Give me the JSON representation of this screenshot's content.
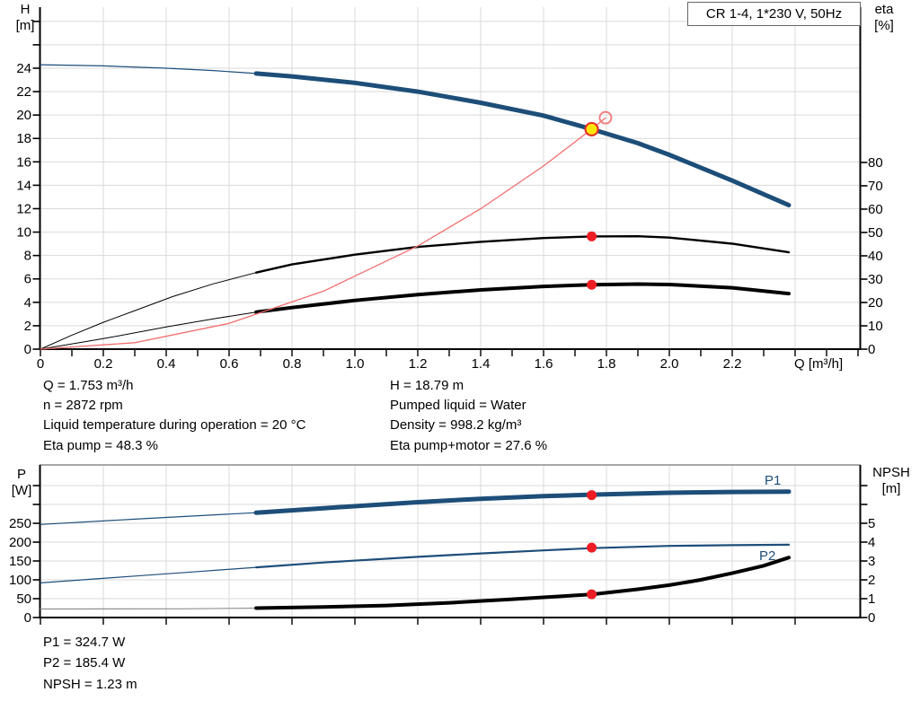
{
  "title_box": "CR 1-4, 1*230 V, 50Hz",
  "colors": {
    "curve_blue": "#1d4e79",
    "curve_black": "#000000",
    "system_red": "#f26d6d",
    "dot_red": "#ee1c23",
    "duty_yellow": "#ffe60a",
    "duty_ring_red": "#e73128",
    "grid": "#d9d9d9",
    "axis": "#000000",
    "npsh_thin_gray": "#909090"
  },
  "info_block": {
    "left": [
      "Q = 1.753 m³/h",
      "n = 2872 rpm",
      "Liquid temperature during operation = 20 °C",
      "Eta pump = 48.3 %"
    ],
    "right": [
      "H = 18.79 m",
      "Pumped liquid = Water",
      "Density = 998.2 kg/m³",
      "Eta pump+motor = 27.6 %"
    ]
  },
  "results_block": [
    "P1 = 324.7 W",
    "P2 = 185.4 W",
    "NPSH = 1.23 m"
  ],
  "chart_data": [
    {
      "type": "line",
      "title": "CR 1-4, 1*230 V, 50Hz",
      "xlabel": "Q [m³/h]",
      "ylabel_left_lines": [
        "H",
        "[m]"
      ],
      "ylabel_right_lines": [
        "eta",
        "[%]"
      ],
      "xlim": [
        0,
        2.61
      ],
      "ylim_left": [
        0,
        29
      ],
      "ylim_right": [
        0,
        145.8
      ],
      "grid": true,
      "x_tick_labels": [
        "0",
        "0.2",
        "0.4",
        "0.6",
        "0.8",
        "1.0",
        "1.2",
        "1.4",
        "1.6",
        "1.8",
        "2.0",
        "2.2"
      ],
      "x_ticks_unlabeled_grid": [
        2.4
      ],
      "y_left_tick_labels": [
        "0",
        "2",
        "4",
        "6",
        "8",
        "10",
        "12",
        "14",
        "16",
        "18",
        "20",
        "22",
        "24"
      ],
      "y_left_ticks_unlabeled": [
        26,
        28
      ],
      "y_right_tick_labels": [
        "0",
        "10",
        "20",
        "30",
        "40",
        "50",
        "60",
        "70",
        "80"
      ],
      "y_right_ticks_unlabeled": [],
      "series": [
        {
          "id": "qh-curve",
          "name": "H (pump curve)",
          "axis": "left",
          "color": "#1d4e79",
          "thin_width": 1.2,
          "thick_width": 5,
          "thin_points": [
            [
              0,
              24.3
            ],
            [
              0.2,
              24.2
            ],
            [
              0.4,
              24.0
            ],
            [
              0.55,
              23.8
            ],
            [
              0.686,
              23.55
            ]
          ],
          "thick_points": [
            [
              0.686,
              23.55
            ],
            [
              0.8,
              23.3
            ],
            [
              1.0,
              22.75
            ],
            [
              1.2,
              22.0
            ],
            [
              1.4,
              21.05
            ],
            [
              1.6,
              19.95
            ],
            [
              1.753,
              18.79
            ],
            [
              1.9,
              17.6
            ],
            [
              2.0,
              16.6
            ],
            [
              2.2,
              14.4
            ],
            [
              2.38,
              12.3
            ]
          ]
        },
        {
          "id": "eta-pump-curve",
          "name": "Eta pump",
          "axis": "right",
          "color": "#000000",
          "thin_width": 1,
          "thick_width": 2.4,
          "thin_points": [
            [
              0,
              0
            ],
            [
              0.1,
              6
            ],
            [
              0.2,
              11.5
            ],
            [
              0.3,
              16.5
            ],
            [
              0.42,
              22.5
            ],
            [
              0.55,
              28
            ],
            [
              0.686,
              32.8
            ]
          ],
          "thick_points": [
            [
              0.686,
              32.8
            ],
            [
              0.8,
              36.3
            ],
            [
              1.0,
              40.5
            ],
            [
              1.2,
              43.8
            ],
            [
              1.4,
              46.0
            ],
            [
              1.6,
              47.6
            ],
            [
              1.753,
              48.3
            ],
            [
              1.9,
              48.4
            ],
            [
              2.0,
              47.8
            ],
            [
              2.2,
              45.2
            ],
            [
              2.38,
              41.5
            ]
          ]
        },
        {
          "id": "eta-pump-motor-curve",
          "name": "Eta pump+motor",
          "axis": "right",
          "color": "#000000",
          "thin_width": 1,
          "thick_width": 4,
          "thin_points": [
            [
              0,
              0
            ],
            [
              0.2,
              4.5
            ],
            [
              0.4,
              9.5
            ],
            [
              0.55,
              13
            ],
            [
              0.686,
              15.9
            ]
          ],
          "thick_points": [
            [
              0.686,
              15.9
            ],
            [
              0.8,
              17.8
            ],
            [
              1.0,
              20.9
            ],
            [
              1.2,
              23.4
            ],
            [
              1.4,
              25.4
            ],
            [
              1.6,
              26.9
            ],
            [
              1.753,
              27.6
            ],
            [
              1.9,
              27.9
            ],
            [
              2.0,
              27.7
            ],
            [
              2.2,
              26.3
            ],
            [
              2.38,
              23.8
            ]
          ]
        },
        {
          "id": "system-curve",
          "name": "Duty line",
          "axis": "left",
          "color": "#f26d6d",
          "thin_width": 1.3,
          "thick_width": 1.3,
          "thin_points": [
            [
              0,
              0
            ],
            [
              0.3,
              0.55
            ],
            [
              0.6,
              2.2
            ],
            [
              0.9,
              4.95
            ],
            [
              1.2,
              8.81
            ],
            [
              1.4,
              11.99
            ],
            [
              1.6,
              15.65
            ],
            [
              1.753,
              18.79
            ],
            [
              1.797,
              19.75
            ]
          ],
          "thick_points": []
        }
      ],
      "markers": [
        {
          "id": "rated-duty-point",
          "shape": "open-circle",
          "axis": "left",
          "q": 1.797,
          "value": 19.77,
          "r": 6.5,
          "fill": "none",
          "stroke": "#f08080",
          "stroke_width": 2
        },
        {
          "id": "operating-point",
          "shape": "dot",
          "axis": "left",
          "q": 1.753,
          "value": 18.79,
          "r": 7,
          "fill": "#ffe60a",
          "stroke": "#e73128",
          "stroke_width": 2.2
        },
        {
          "id": "eta-pump-point",
          "shape": "dot",
          "axis": "right",
          "q": 1.753,
          "value": 48.3,
          "r": 5.5,
          "fill": "#ee1c23",
          "stroke": "none",
          "stroke_width": 0
        },
        {
          "id": "eta-pump-motor-point",
          "shape": "dot",
          "axis": "right",
          "q": 1.753,
          "value": 27.6,
          "r": 5.5,
          "fill": "#ee1c23",
          "stroke": "none",
          "stroke_width": 0
        }
      ]
    },
    {
      "type": "line",
      "title": "",
      "xlabel": "",
      "ylabel_left_lines": [
        "P",
        "[W]"
      ],
      "ylabel_right_lines": [
        "NPSH",
        "[m]"
      ],
      "xlim": [
        0,
        2.61
      ],
      "ylim_left": [
        0,
        404
      ],
      "ylim_right": [
        0,
        8.1
      ],
      "grid": true,
      "x_tick_labels": [],
      "x_ticks_unlabeled_grid": [
        0.2,
        0.4,
        0.6,
        0.8,
        1.0,
        1.2,
        1.4,
        1.6,
        1.8,
        2.0,
        2.2,
        2.4
      ],
      "y_left_tick_labels": [
        "0",
        "50",
        "100",
        "150",
        "200",
        "250"
      ],
      "y_left_ticks_unlabeled": [
        300,
        350
      ],
      "y_right_tick_labels": [
        "0",
        "1",
        "2",
        "3",
        "4",
        "5"
      ],
      "y_right_ticks_unlabeled": [
        6,
        7
      ],
      "series": [
        {
          "id": "p1-curve",
          "name": "P1",
          "label": "P1",
          "axis": "left",
          "color": "#1d4e79",
          "thin_width": 1.2,
          "thick_width": 5,
          "thin_points": [
            [
              0,
              247
            ],
            [
              0.3,
              261
            ],
            [
              0.5,
              270
            ],
            [
              0.686,
              278
            ]
          ],
          "thick_points": [
            [
              0.686,
              278
            ],
            [
              0.9,
              290
            ],
            [
              1.2,
              306
            ],
            [
              1.4,
              315
            ],
            [
              1.6,
              322
            ],
            [
              1.753,
              326
            ],
            [
              2.0,
              331
            ],
            [
              2.2,
              333
            ],
            [
              2.38,
              334
            ]
          ]
        },
        {
          "id": "p2-curve",
          "name": "P2",
          "label": "P2",
          "axis": "left",
          "color": "#1d4e79",
          "thin_width": 1.2,
          "thick_width": 2.2,
          "thin_points": [
            [
              0,
              92
            ],
            [
              0.3,
              110
            ],
            [
              0.5,
              122
            ],
            [
              0.686,
              133
            ]
          ],
          "thick_points": [
            [
              0.686,
              133
            ],
            [
              0.9,
              146
            ],
            [
              1.2,
              161
            ],
            [
              1.4,
              170
            ],
            [
              1.6,
              178
            ],
            [
              1.753,
              184
            ],
            [
              2.0,
              190
            ],
            [
              2.2,
              192
            ],
            [
              2.38,
              193
            ]
          ]
        },
        {
          "id": "npsh-curve",
          "name": "NPSH",
          "axis": "right",
          "color": "#000000",
          "thin_color": "#909090",
          "thin_width": 1.2,
          "thick_width": 4,
          "thin_points": [
            [
              0,
              0.45
            ],
            [
              0.45,
              0.46
            ],
            [
              0.686,
              0.5
            ]
          ],
          "thick_points": [
            [
              0.686,
              0.5
            ],
            [
              0.9,
              0.56
            ],
            [
              1.1,
              0.64
            ],
            [
              1.3,
              0.78
            ],
            [
              1.5,
              0.97
            ],
            [
              1.753,
              1.23
            ],
            [
              1.9,
              1.5
            ],
            [
              2.0,
              1.72
            ],
            [
              2.1,
              2.0
            ],
            [
              2.2,
              2.35
            ],
            [
              2.3,
              2.75
            ],
            [
              2.38,
              3.18
            ]
          ]
        }
      ],
      "markers": [
        {
          "id": "p1-point",
          "shape": "dot",
          "axis": "left",
          "q": 1.753,
          "value": 324.7,
          "r": 5.5,
          "fill": "#ee1c23",
          "stroke": "none",
          "stroke_width": 0
        },
        {
          "id": "p2-point",
          "shape": "dot",
          "axis": "left",
          "q": 1.753,
          "value": 185.4,
          "r": 5.5,
          "fill": "#ee1c23",
          "stroke": "none",
          "stroke_width": 0
        },
        {
          "id": "npsh-point",
          "shape": "dot",
          "axis": "right",
          "q": 1.753,
          "value": 1.23,
          "r": 5.5,
          "fill": "#ee1c23",
          "stroke": "none",
          "stroke_width": 0
        }
      ]
    }
  ]
}
